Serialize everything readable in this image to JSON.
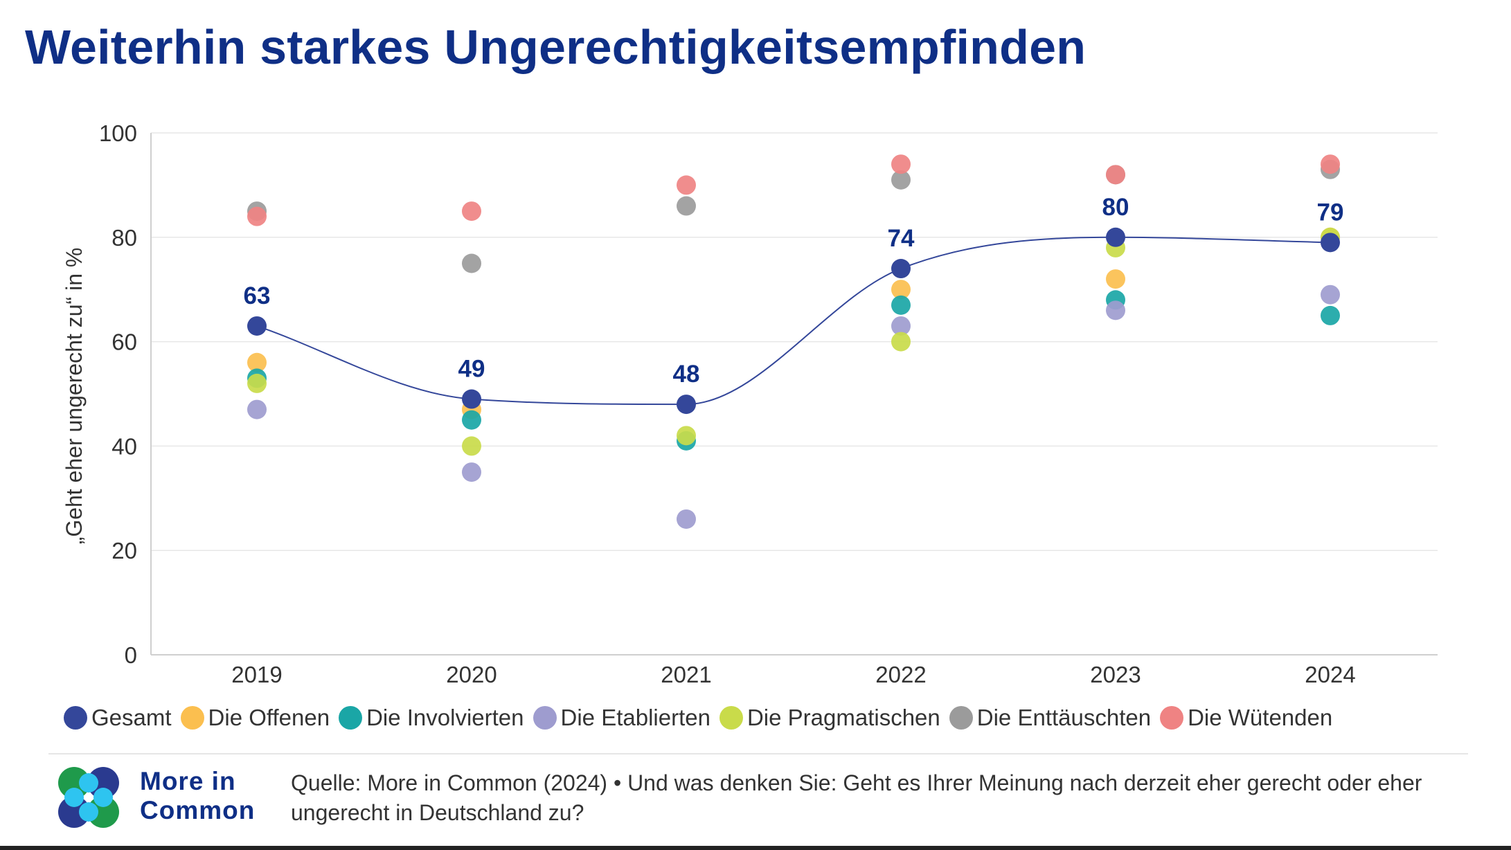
{
  "title": "Weiterhin starkes Ungerechtigkeitsempfinden",
  "chart_data": {
    "type": "scatter",
    "ylabel": "„Geht eher ungerecht zu“ in %",
    "ylim": [
      0,
      100
    ],
    "yticks": [
      0,
      20,
      40,
      60,
      80,
      100
    ],
    "categories": [
      "2019",
      "2020",
      "2021",
      "2022",
      "2023",
      "2024"
    ],
    "grid": true,
    "legend_position": "bottom",
    "trend_series": "Gesamt",
    "series": [
      {
        "name": "Gesamt",
        "color": "#34479a",
        "values": [
          63,
          49,
          48,
          74,
          80,
          79
        ],
        "data_labels": [
          "63",
          "49",
          "48",
          "74",
          "80",
          "79"
        ]
      },
      {
        "name": "Die Offenen",
        "color": "#fbbf4f",
        "values": [
          56,
          47,
          null,
          70,
          72,
          80
        ]
      },
      {
        "name": "Die Involvierten",
        "color": "#1aa6a6",
        "values": [
          53,
          45,
          41,
          67,
          68,
          65
        ]
      },
      {
        "name": "Die Etablierten",
        "color": "#9e9ccf",
        "values": [
          47,
          35,
          26,
          63,
          66,
          69
        ]
      },
      {
        "name": "Die Pragmatischen",
        "color": "#c9db4a",
        "values": [
          52,
          40,
          42,
          60,
          78,
          80
        ]
      },
      {
        "name": "Die Enttäuschten",
        "color": "#9b9b9b",
        "values": [
          85,
          75,
          86,
          91,
          92,
          93
        ]
      },
      {
        "name": "Die Wütenden",
        "color": "#ef8383",
        "values": [
          84,
          85,
          90,
          94,
          92,
          94
        ]
      }
    ]
  },
  "logo": {
    "line1": "More in",
    "line2": "Common"
  },
  "source": "Quelle: More in Common (2024) • Und was denken Sie: Geht es Ihrer Meinung nach derzeit eher gerecht oder eher ungerecht in Deutschland zu?"
}
